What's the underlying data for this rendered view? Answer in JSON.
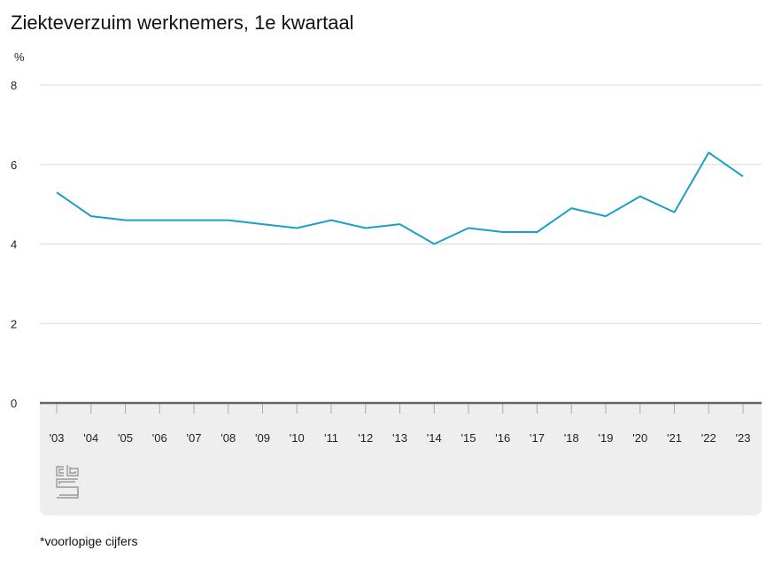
{
  "title": "Ziekteverzuim werknemers, 1e kwartaal",
  "footnote": "*voorlopige cijfers",
  "logo_text": "cbs",
  "colors": {
    "line": "#1a9fc9",
    "grid": "#d9d9d9",
    "baseline": "#666666",
    "panel": "#eeeeee"
  },
  "chart_data": {
    "type": "line",
    "title": "Ziekteverzuim werknemers, 1e kwartaal",
    "ylabel": "%",
    "xlabel": "",
    "ylim": [
      0,
      8
    ],
    "yticks": [
      0,
      2,
      4,
      6,
      8
    ],
    "grid": true,
    "categories": [
      "'03",
      "'04",
      "'05",
      "'06",
      "'07",
      "'08",
      "'09",
      "'10",
      "'11",
      "'12",
      "'13",
      "'14",
      "'15",
      "'16",
      "'17",
      "'18",
      "'19",
      "'20",
      "'21",
      "'22",
      "'23"
    ],
    "series": [
      {
        "values": [
          5.3,
          4.7,
          4.6,
          4.6,
          4.6,
          4.6,
          4.5,
          4.4,
          4.6,
          4.4,
          4.5,
          4.0,
          4.4,
          4.3,
          4.3,
          4.9,
          4.7,
          5.2,
          4.8,
          6.3,
          5.7
        ]
      }
    ]
  }
}
